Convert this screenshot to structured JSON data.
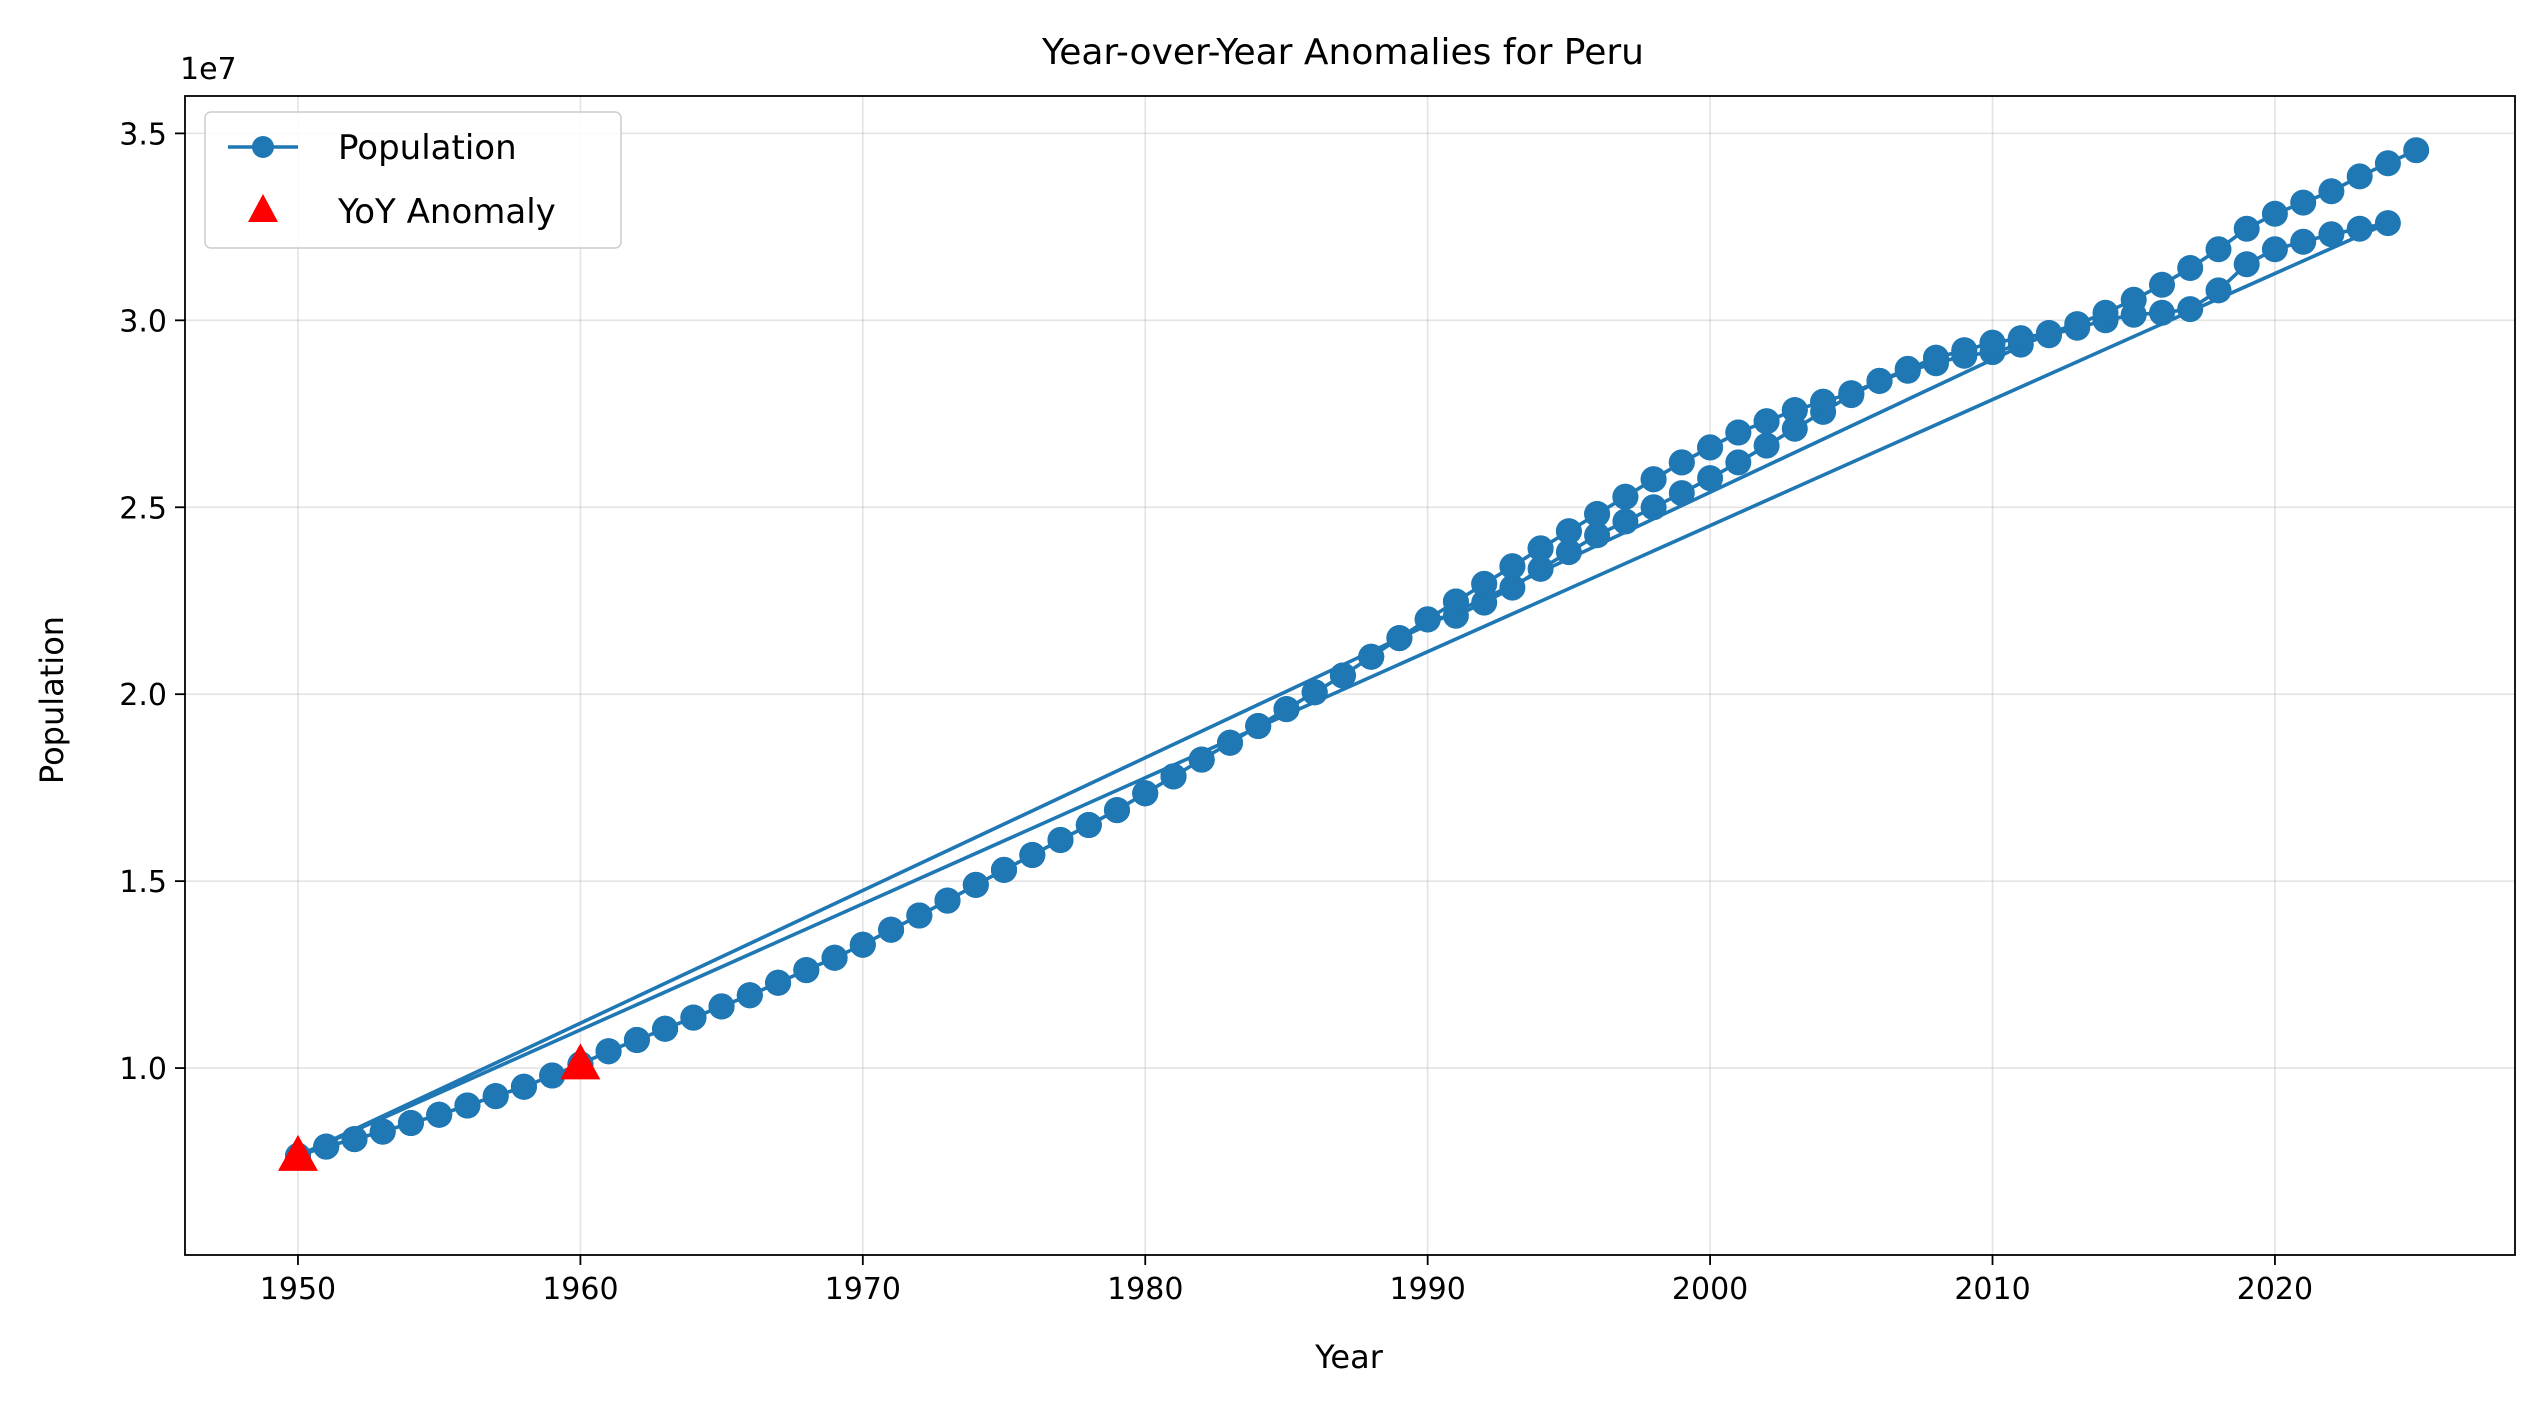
{
  "chart_data": {
    "type": "line",
    "title": "Year-over-Year Anomalies for Peru",
    "xlabel": "Year",
    "ylabel": "Population",
    "y_offset_text": "1e7",
    "xlim": [
      1946,
      2028.5
    ],
    "ylim": [
      0.5,
      3.6
    ],
    "x_ticks": [
      1950,
      1960,
      1970,
      1980,
      1990,
      2000,
      2010,
      2020
    ],
    "y_ticks": [
      1.0,
      1.5,
      2.0,
      2.5,
      3.0,
      3.5
    ],
    "y_tick_labels": [
      "1.0",
      "1.5",
      "2.0",
      "2.5",
      "3.0",
      "3.5"
    ],
    "grid": true,
    "legend": "top-left",
    "colors": {
      "population": "#1f77b4",
      "anomaly": "#ff0000"
    },
    "series": [
      {
        "name": "Population",
        "marker": "circle",
        "points": [
          [
            1950,
            0.765
          ],
          [
            1951,
            0.79
          ],
          [
            1952,
            0.81
          ],
          [
            1953,
            0.83
          ],
          [
            1954,
            0.853
          ],
          [
            1955,
            0.875
          ],
          [
            1956,
            0.9
          ],
          [
            1957,
            0.925
          ],
          [
            1958,
            0.95
          ],
          [
            1959,
            0.98
          ],
          [
            1960,
            1.01
          ],
          [
            1961,
            1.045
          ],
          [
            1962,
            1.075
          ],
          [
            1963,
            1.105
          ],
          [
            1964,
            1.135
          ],
          [
            1965,
            1.165
          ],
          [
            1966,
            1.195
          ],
          [
            1967,
            1.228
          ],
          [
            1968,
            1.262
          ],
          [
            1969,
            1.295
          ],
          [
            1970,
            1.33
          ],
          [
            1971,
            1.37
          ],
          [
            1972,
            1.408
          ],
          [
            1973,
            1.448
          ],
          [
            1974,
            1.49
          ],
          [
            1975,
            1.53
          ],
          [
            1976,
            1.57
          ],
          [
            1977,
            1.61
          ],
          [
            1978,
            1.65
          ],
          [
            1979,
            1.69
          ],
          [
            1980,
            1.735
          ],
          [
            1981,
            1.78
          ],
          [
            1982,
            1.825
          ],
          [
            1983,
            1.87
          ],
          [
            1984,
            1.915
          ],
          [
            1985,
            1.96
          ],
          [
            1986,
            2.005
          ],
          [
            1987,
            2.05
          ],
          [
            1988,
            2.1
          ],
          [
            1989,
            2.15
          ],
          [
            1990,
            2.2
          ],
          [
            1991,
            2.248
          ],
          [
            1992,
            2.295
          ],
          [
            1993,
            2.342
          ],
          [
            1994,
            2.39
          ],
          [
            1995,
            2.436
          ],
          [
            1996,
            2.482
          ],
          [
            1997,
            2.528
          ],
          [
            1998,
            2.575
          ],
          [
            1999,
            2.62
          ],
          [
            2000,
            2.66
          ],
          [
            2001,
            2.7
          ],
          [
            2002,
            2.73
          ],
          [
            2003,
            2.76
          ],
          [
            2004,
            2.782
          ],
          [
            2005,
            2.805
          ],
          [
            2006,
            2.838
          ],
          [
            2007,
            2.87
          ],
          [
            2008,
            2.9
          ],
          [
            2009,
            2.92
          ],
          [
            2010,
            2.94
          ],
          [
            2011,
            2.952
          ],
          [
            2012,
            2.966
          ],
          [
            1950,
            0.765
          ],
          [
            1951,
            0.79
          ],
          [
            1952,
            0.81
          ],
          [
            1953,
            0.83
          ],
          [
            1954,
            0.853
          ],
          [
            1955,
            0.875
          ],
          [
            1956,
            0.9
          ],
          [
            1957,
            0.925
          ],
          [
            1958,
            0.95
          ],
          [
            1959,
            0.98
          ],
          [
            1960,
            1.01
          ],
          [
            1961,
            1.045
          ],
          [
            1962,
            1.075
          ],
          [
            1963,
            1.105
          ],
          [
            1964,
            1.135
          ],
          [
            1965,
            1.165
          ],
          [
            1966,
            1.195
          ],
          [
            1967,
            1.228
          ],
          [
            1968,
            1.262
          ],
          [
            1969,
            1.295
          ],
          [
            1970,
            1.33
          ],
          [
            1971,
            1.37
          ],
          [
            1972,
            1.408
          ],
          [
            1973,
            1.448
          ],
          [
            1974,
            1.49
          ],
          [
            1975,
            1.53
          ],
          [
            1976,
            1.57
          ],
          [
            1977,
            1.61
          ],
          [
            1978,
            1.65
          ],
          [
            1979,
            1.69
          ],
          [
            1980,
            1.735
          ],
          [
            1981,
            1.78
          ],
          [
            1982,
            1.825
          ],
          [
            1983,
            1.87
          ],
          [
            1984,
            1.915
          ],
          [
            1985,
            1.96
          ],
          [
            1986,
            2.005
          ],
          [
            1987,
            2.05
          ],
          [
            1988,
            2.1
          ],
          [
            1989,
            2.15
          ],
          [
            1990,
            2.2
          ],
          [
            1991,
            2.21
          ],
          [
            1992,
            2.245
          ],
          [
            1993,
            2.285
          ],
          [
            1994,
            2.335
          ],
          [
            1995,
            2.38
          ],
          [
            1996,
            2.425
          ],
          [
            1997,
            2.462
          ],
          [
            1998,
            2.5
          ],
          [
            1999,
            2.538
          ],
          [
            2000,
            2.578
          ],
          [
            2001,
            2.62
          ],
          [
            2002,
            2.665
          ],
          [
            2003,
            2.71
          ],
          [
            2004,
            2.755
          ],
          [
            2005,
            2.8
          ],
          [
            2006,
            2.838
          ],
          [
            2007,
            2.865
          ],
          [
            2008,
            2.885
          ],
          [
            2009,
            2.905
          ],
          [
            2010,
            2.915
          ],
          [
            2011,
            2.935
          ],
          [
            2012,
            2.96
          ],
          [
            2013,
            2.98
          ],
          [
            2014,
            3.0
          ],
          [
            2015,
            3.015
          ],
          [
            2016,
            3.02
          ],
          [
            2017,
            3.03
          ],
          [
            2018,
            3.08
          ],
          [
            2019,
            3.15
          ],
          [
            2020,
            3.19
          ],
          [
            2021,
            3.21
          ],
          [
            2022,
            3.23
          ],
          [
            2023,
            3.245
          ],
          [
            2024,
            3.26
          ],
          [
            1950,
            0.765
          ],
          [
            1951,
            0.79
          ],
          [
            1952,
            0.81
          ],
          [
            1953,
            0.83
          ],
          [
            1954,
            0.853
          ],
          [
            1955,
            0.875
          ],
          [
            1956,
            0.9
          ],
          [
            1957,
            0.925
          ],
          [
            1958,
            0.95
          ],
          [
            1959,
            0.98
          ],
          [
            1960,
            1.01
          ],
          [
            1961,
            1.045
          ],
          [
            1962,
            1.075
          ],
          [
            1963,
            1.105
          ],
          [
            1964,
            1.135
          ],
          [
            1965,
            1.165
          ],
          [
            1966,
            1.195
          ],
          [
            1967,
            1.228
          ],
          [
            1968,
            1.262
          ],
          [
            1969,
            1.295
          ],
          [
            1970,
            1.33
          ],
          [
            1971,
            1.37
          ],
          [
            1972,
            1.408
          ],
          [
            1973,
            1.448
          ],
          [
            1974,
            1.49
          ],
          [
            1975,
            1.53
          ],
          [
            1976,
            1.57
          ],
          [
            1977,
            1.61
          ],
          [
            1978,
            1.65
          ],
          [
            1979,
            1.69
          ],
          [
            1980,
            1.735
          ],
          [
            1981,
            1.78
          ],
          [
            1982,
            1.825
          ],
          [
            1983,
            1.87
          ],
          [
            1984,
            1.915
          ],
          [
            1985,
            1.96
          ],
          [
            1986,
            2.005
          ],
          [
            1987,
            2.05
          ],
          [
            1988,
            2.1
          ],
          [
            1989,
            2.15
          ],
          [
            1990,
            2.2
          ],
          [
            1991,
            2.248
          ],
          [
            1992,
            2.295
          ],
          [
            1993,
            2.342
          ],
          [
            1994,
            2.39
          ],
          [
            1995,
            2.436
          ],
          [
            1996,
            2.482
          ],
          [
            1997,
            2.528
          ],
          [
            1998,
            2.575
          ],
          [
            1999,
            2.62
          ],
          [
            2000,
            2.66
          ],
          [
            2001,
            2.7
          ],
          [
            2002,
            2.73
          ],
          [
            2003,
            2.76
          ],
          [
            2004,
            2.782
          ],
          [
            2005,
            2.805
          ],
          [
            2006,
            2.838
          ],
          [
            2007,
            2.87
          ],
          [
            2008,
            2.9
          ],
          [
            2009,
            2.92
          ],
          [
            2010,
            2.94
          ],
          [
            2011,
            2.952
          ],
          [
            2012,
            2.966
          ],
          [
            2013,
            2.99
          ],
          [
            2014,
            3.02
          ],
          [
            2015,
            3.055
          ],
          [
            2016,
            3.095
          ],
          [
            2017,
            3.14
          ],
          [
            2018,
            3.19
          ],
          [
            2019,
            3.245
          ],
          [
            2020,
            3.285
          ],
          [
            2021,
            3.315
          ],
          [
            2022,
            3.345
          ],
          [
            2023,
            3.385
          ],
          [
            2024,
            3.42
          ],
          [
            2025,
            3.455
          ]
        ]
      },
      {
        "name": "YoY Anomaly",
        "marker": "triangle",
        "points": [
          [
            1950,
            0.765
          ],
          [
            1960,
            1.01
          ]
        ]
      }
    ]
  }
}
